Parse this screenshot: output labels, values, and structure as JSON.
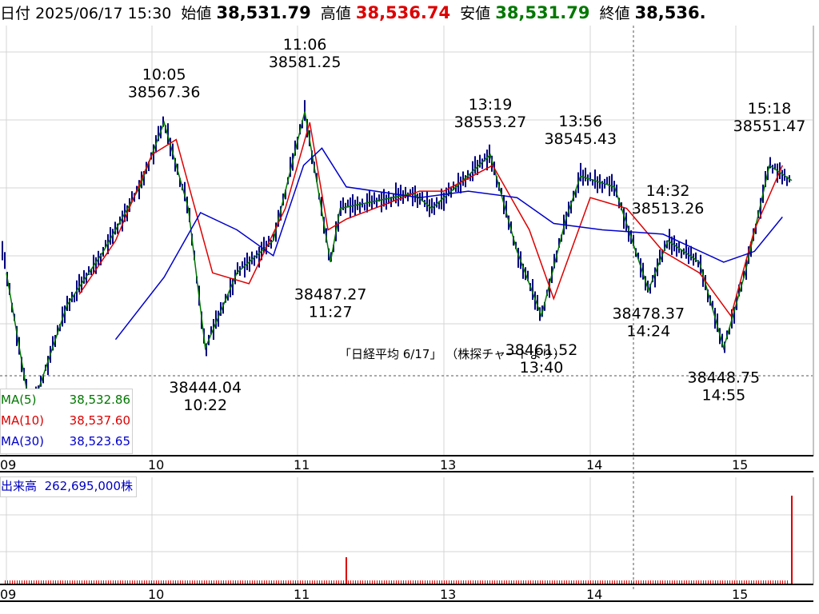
{
  "header": {
    "date_label": "日付",
    "datetime": "2025/06/17 15:30",
    "open_label": "始値",
    "open": "38,531.79",
    "high_label": "高値",
    "high": "38,536.74",
    "low_label": "安値",
    "low": "38,531.79",
    "close_label": "終値",
    "close": "38,536."
  },
  "caption": "「日経平均  6/17」  （株探チャートより）",
  "ma_legend": [
    {
      "name": "MA(5)",
      "value": "38,532.86",
      "color": "#007700"
    },
    {
      "name": "MA(10)",
      "value": "38,537.60",
      "color": "#dd0000"
    },
    {
      "name": "MA(30)",
      "value": "38,523.65",
      "color": "#0000cc"
    }
  ],
  "volume_legend": {
    "label": "出来高",
    "value": "262,695,000株"
  },
  "colors": {
    "grid": "#d4d4d4",
    "candle": "#000080",
    "ma5": "#007700",
    "ma10": "#dd0000",
    "ma30": "#0000cc",
    "volume": "#dd0000",
    "high_text": "#dd0000",
    "low_text": "#006600"
  },
  "chart_data": [
    {
      "type": "line",
      "title": "日経平均 6/17",
      "x_axis": {
        "ticks": [
          "09",
          "10",
          "11",
          "13",
          "14",
          "15"
        ],
        "unit": "time (hour)"
      },
      "ylim": [
        38405,
        38605
      ],
      "series": [
        {
          "name": "MA(5)",
          "color": "#007700",
          "x": [
            "09:00",
            "09:10",
            "09:25",
            "09:40",
            "09:55",
            "10:05",
            "10:15",
            "10:22",
            "10:35",
            "10:50",
            "11:06",
            "11:15",
            "11:27",
            "11:35",
            "12:35",
            "12:50",
            "13:05",
            "13:19",
            "13:30",
            "13:40",
            "13:50",
            "13:56",
            "14:10",
            "14:24",
            "14:32",
            "14:45",
            "14:55",
            "15:05",
            "15:18",
            "15:30"
          ],
          "y": [
            38490,
            38425,
            38475,
            38500,
            38530,
            38560,
            38520,
            38455,
            38490,
            38505,
            38565,
            38535,
            38495,
            38520,
            38527,
            38520,
            38530,
            38545,
            38500,
            38470,
            38515,
            38535,
            38530,
            38482,
            38505,
            38495,
            38455,
            38490,
            38540,
            38533
          ]
        },
        {
          "name": "MA(10)",
          "color": "#dd0000",
          "x": [
            "09:30",
            "09:45",
            "10:00",
            "10:10",
            "10:25",
            "10:40",
            "10:55",
            "11:10",
            "11:25",
            "11:40",
            "12:40",
            "13:00",
            "13:20",
            "13:35",
            "13:45",
            "14:00",
            "14:15",
            "14:30",
            "14:45",
            "14:58",
            "15:10",
            "15:25"
          ],
          "y": [
            38480,
            38505,
            38545,
            38552,
            38490,
            38485,
            38520,
            38560,
            38510,
            38515,
            38528,
            38528,
            38540,
            38510,
            38478,
            38525,
            38520,
            38500,
            38490,
            38470,
            38510,
            38540
          ]
        },
        {
          "name": "MA(30)",
          "color": "#0000cc",
          "x": [
            "09:45",
            "10:05",
            "10:20",
            "10:35",
            "10:50",
            "11:05",
            "11:20",
            "11:40",
            "12:40",
            "13:10",
            "13:30",
            "13:45",
            "14:05",
            "14:30",
            "14:55",
            "15:10",
            "15:25"
          ],
          "y": [
            38459,
            38488,
            38518,
            38510,
            38498,
            38540,
            38548,
            38530,
            38525,
            38528,
            38525,
            38513,
            38510,
            38508,
            38495,
            38500,
            38516
          ]
        }
      ],
      "annotations": [
        {
          "time": "10:05",
          "price": "38567.36",
          "kind": "high"
        },
        {
          "time": "10:22",
          "price": "38444.04",
          "kind": "low"
        },
        {
          "time": "11:06",
          "price": "38581.25",
          "kind": "high"
        },
        {
          "time": "11:27",
          "price": "38487.27",
          "kind": "low"
        },
        {
          "time": "13:19",
          "price": "38553.27",
          "kind": "high"
        },
        {
          "time": "13:40",
          "price": "38461.52",
          "kind": "low"
        },
        {
          "time": "13:56",
          "price": "38545.43",
          "kind": "high"
        },
        {
          "time": "14:24",
          "price": "38478.37",
          "kind": "low"
        },
        {
          "time": "14:32",
          "price": "38513.26",
          "kind": "high"
        },
        {
          "time": "14:55",
          "price": "38448.75",
          "kind": "low"
        },
        {
          "time": "15:18",
          "price": "38551.47",
          "kind": "high"
        }
      ]
    },
    {
      "type": "bar",
      "title": "出来高",
      "x": [
        "09",
        "10",
        "11",
        "11:40",
        "13",
        "14",
        "15",
        "15:30"
      ],
      "values": [
        3,
        3,
        3,
        30,
        3,
        3,
        3,
        100
      ],
      "unit": "relative"
    }
  ]
}
